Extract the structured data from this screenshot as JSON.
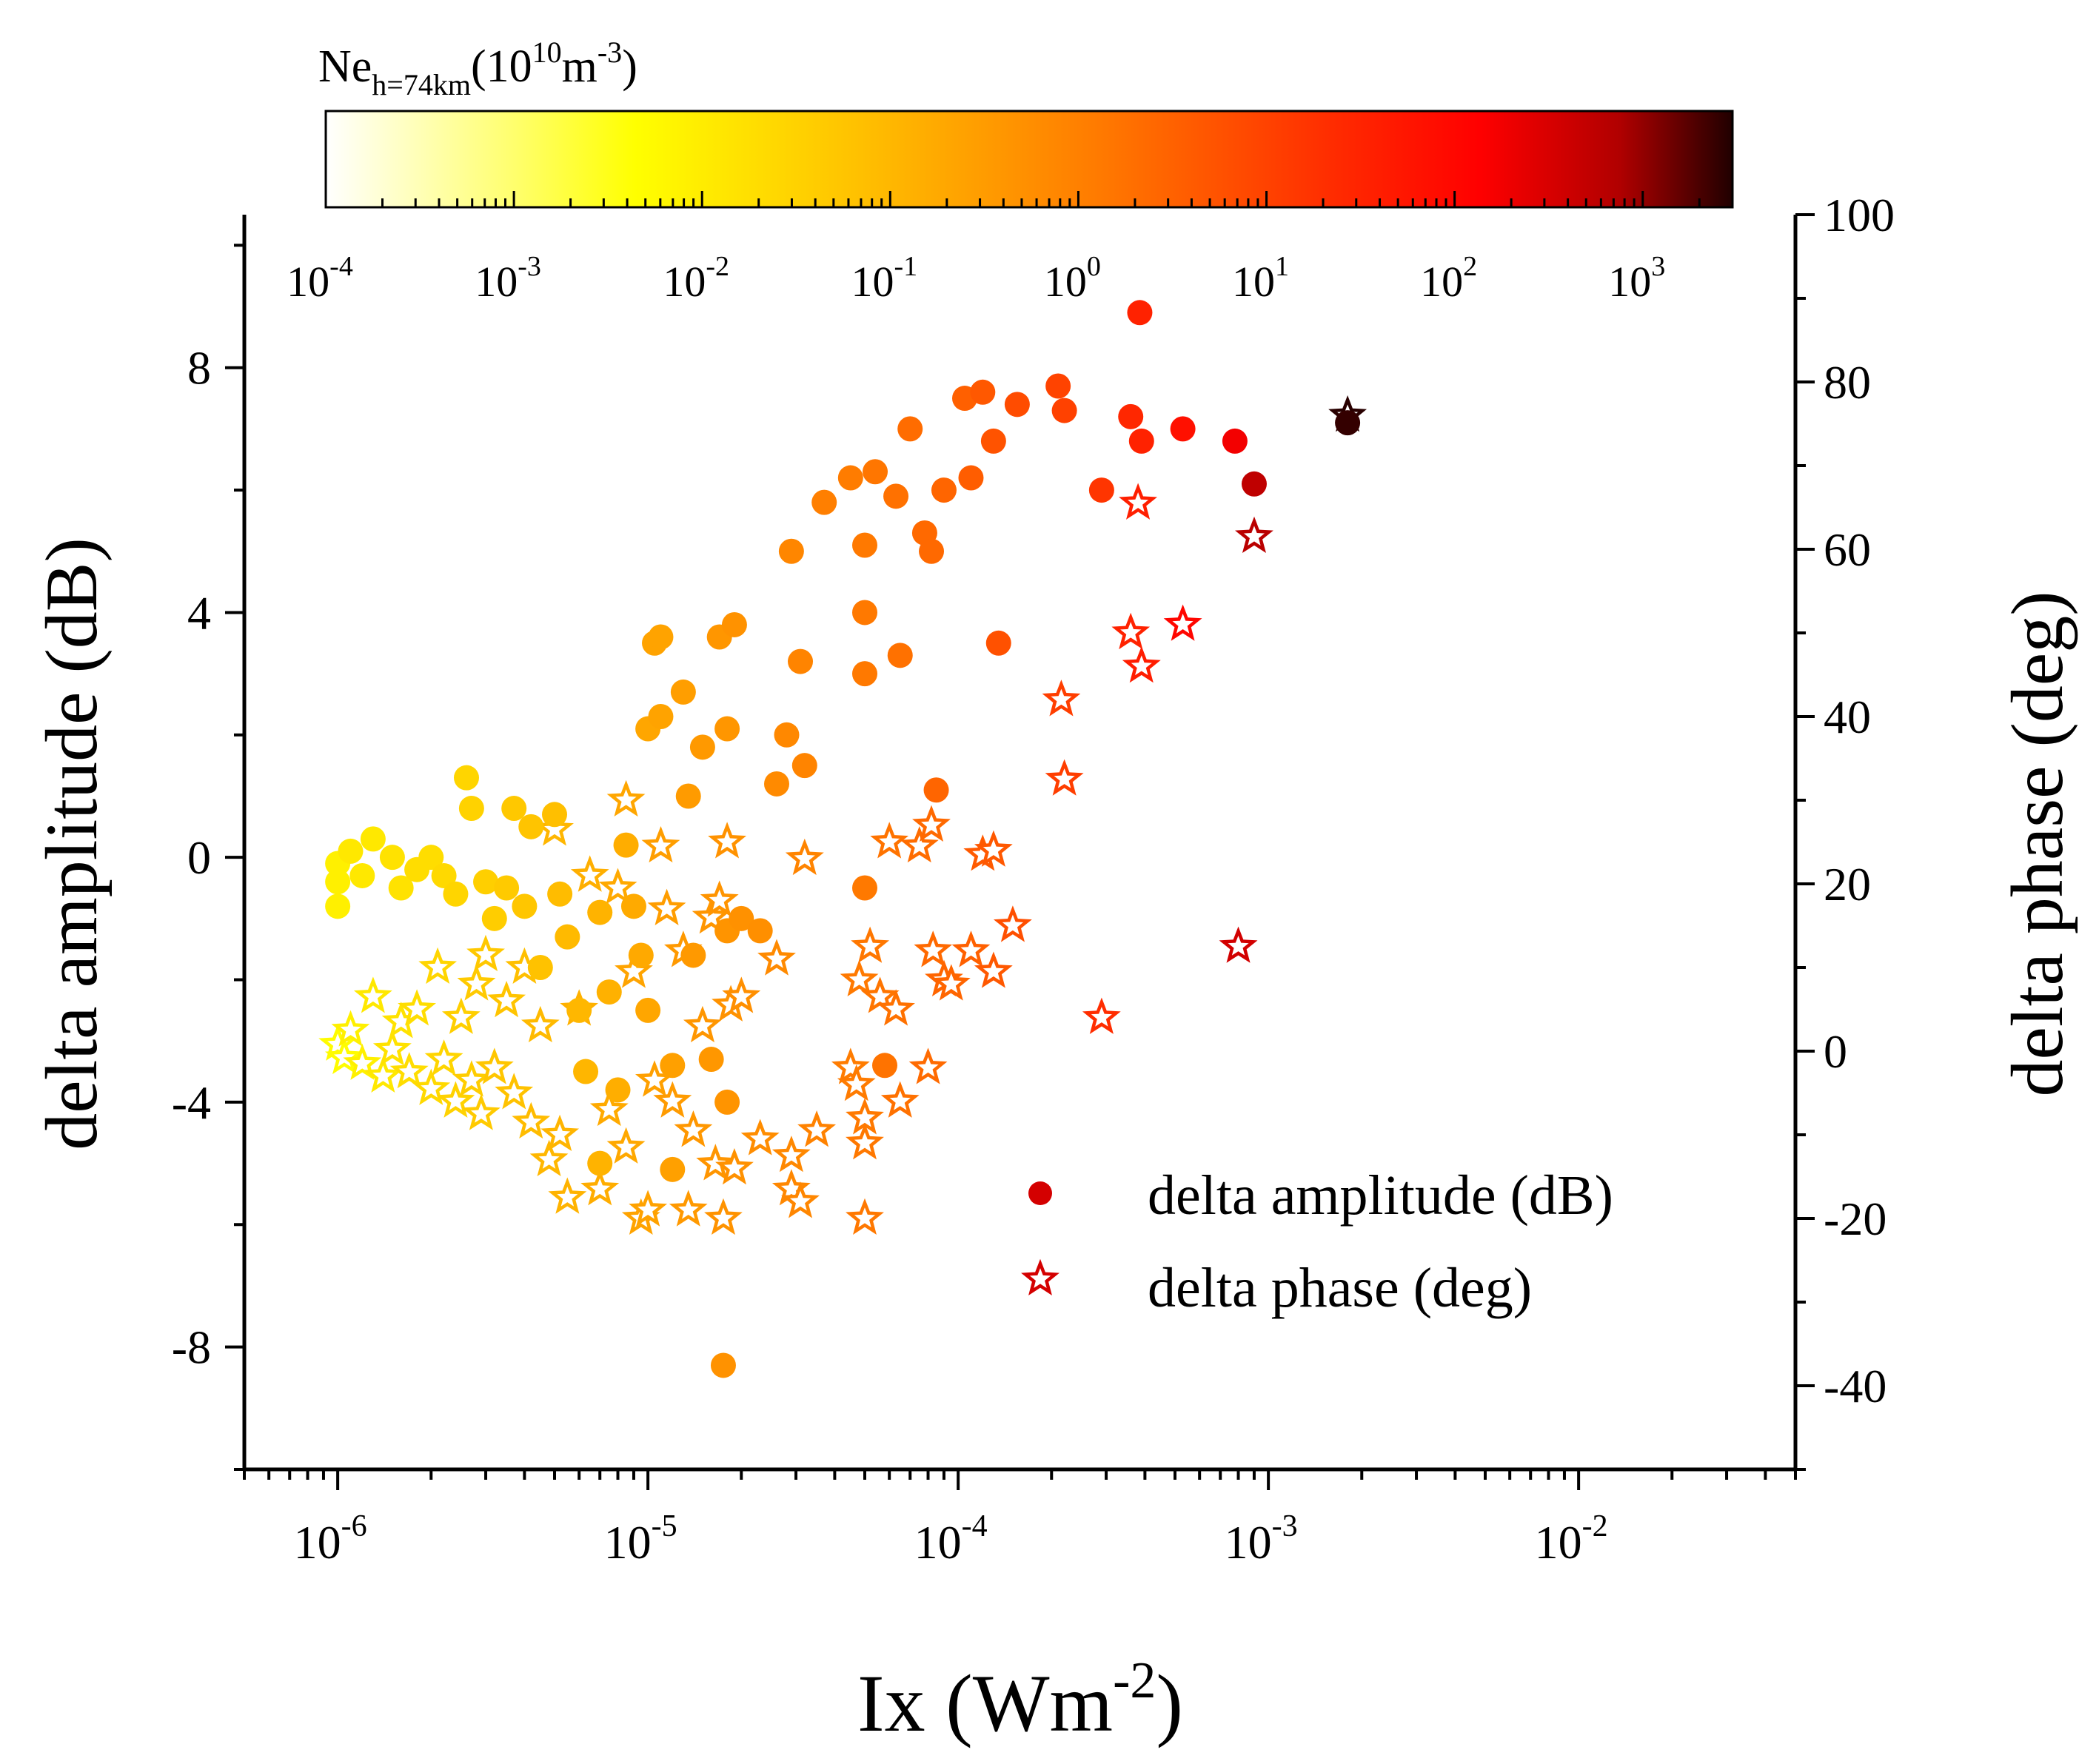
{
  "chart_data": {
    "type": "scatter",
    "xlabel": "Ix (Wm",
    "xlabel_sup": "-2",
    "xlabel_close": ")",
    "ylabel_left": "delta amplitude (dB)",
    "ylabel_right": "delta phase (deg)",
    "x_scale": "log",
    "xlim": [
      5e-07,
      0.05
    ],
    "ylim_left": [
      -10,
      10.5
    ],
    "ylim_right": [
      -50,
      100
    ],
    "x_ticks": [
      {
        "value": 1e-06,
        "base": "10",
        "exp": "-6"
      },
      {
        "value": 1e-05,
        "base": "10",
        "exp": "-5"
      },
      {
        "value": 0.0001,
        "base": "10",
        "exp": "-4"
      },
      {
        "value": 0.001,
        "base": "10",
        "exp": "-3"
      },
      {
        "value": 0.01,
        "base": "10",
        "exp": "-2"
      }
    ],
    "y_left_ticks": [
      {
        "value": 8,
        "label": "8"
      },
      {
        "value": 4,
        "label": "4"
      },
      {
        "value": 0,
        "label": "0"
      },
      {
        "value": -4,
        "label": "-4"
      },
      {
        "value": -8,
        "label": "-8"
      }
    ],
    "y_right_ticks": [
      {
        "value": 100,
        "label": "100"
      },
      {
        "value": 80,
        "label": "80"
      },
      {
        "value": 60,
        "label": "60"
      },
      {
        "value": 40,
        "label": "40"
      },
      {
        "value": 20,
        "label": "20"
      },
      {
        "value": 0,
        "label": "0"
      },
      {
        "value": -20,
        "label": "-20"
      },
      {
        "value": -40,
        "label": "-40"
      }
    ],
    "colorbar": {
      "title_main": "Ne",
      "title_sub": "h=74km",
      "title_open": "(10",
      "title_sup1": "10",
      "title_mid": "m",
      "title_sup2": "-3",
      "title_close": ")",
      "scale": "log",
      "range": [
        0.0001,
        3000
      ],
      "ticks": [
        {
          "value": 0.0001,
          "base": "10",
          "exp": "-4"
        },
        {
          "value": 0.001,
          "base": "10",
          "exp": "-3"
        },
        {
          "value": 0.01,
          "base": "10",
          "exp": "-2"
        },
        {
          "value": 0.1,
          "base": "10",
          "exp": "-1"
        },
        {
          "value": 1,
          "base": "10",
          "exp": "0"
        },
        {
          "value": 10,
          "base": "10",
          "exp": "1"
        },
        {
          "value": 100,
          "base": "10",
          "exp": "2"
        },
        {
          "value": 1000,
          "base": "10",
          "exp": "3"
        }
      ],
      "colors": [
        "#ffffff",
        "#ffff00",
        "#ffb000",
        "#ff6000",
        "#ff0000",
        "#b00000",
        "#200000"
      ]
    },
    "legend": [
      {
        "name": "delta amplitude (dB)",
        "marker": "circle",
        "color": "#d40000"
      },
      {
        "name": "delta phase (deg)",
        "marker": "star",
        "color": "#d40000"
      }
    ],
    "series": [
      {
        "name": "delta amplitude (dB)",
        "marker": "circle",
        "axis": "left",
        "points": [
          [
            1e-06,
            -0.1,
            0.003
          ],
          [
            1e-06,
            -0.4,
            0.003
          ],
          [
            1e-06,
            -0.8,
            0.003
          ],
          [
            1.1e-06,
            0.1,
            0.004
          ],
          [
            1.2e-06,
            -0.3,
            0.004
          ],
          [
            1.3e-06,
            0.3,
            0.004
          ],
          [
            1.5e-06,
            0.0,
            0.005
          ],
          [
            1.6e-06,
            -0.5,
            0.005
          ],
          [
            1.8e-06,
            -0.2,
            0.006
          ],
          [
            2e-06,
            0.0,
            0.006
          ],
          [
            2.2e-06,
            -0.3,
            0.007
          ],
          [
            2.4e-06,
            -0.6,
            0.008
          ],
          [
            2.6e-06,
            1.3,
            0.008
          ],
          [
            2.7e-06,
            0.8,
            0.009
          ],
          [
            3e-06,
            -0.4,
            0.01
          ],
          [
            3.2e-06,
            -1.0,
            0.011
          ],
          [
            3.5e-06,
            -0.5,
            0.012
          ],
          [
            3.7e-06,
            0.8,
            0.013
          ],
          [
            4e-06,
            -0.8,
            0.014
          ],
          [
            4.2e-06,
            0.5,
            0.015
          ],
          [
            4.5e-06,
            -1.8,
            0.016
          ],
          [
            5e-06,
            0.7,
            0.018
          ],
          [
            5.2e-06,
            -0.6,
            0.02
          ],
          [
            5.5e-06,
            -1.3,
            0.022
          ],
          [
            6e-06,
            -2.5,
            0.024
          ],
          [
            6.3e-06,
            -3.5,
            0.025
          ],
          [
            7e-06,
            -0.9,
            0.028
          ],
          [
            7e-06,
            -5.0,
            0.028
          ],
          [
            7.5e-06,
            -2.2,
            0.03
          ],
          [
            8e-06,
            -3.8,
            0.033
          ],
          [
            8.5e-06,
            0.2,
            0.035
          ],
          [
            9e-06,
            -0.8,
            0.038
          ],
          [
            9.5e-06,
            -1.6,
            0.04
          ],
          [
            1e-05,
            -2.5,
            0.045
          ],
          [
            1e-05,
            2.1,
            0.045
          ],
          [
            1.05e-05,
            3.5,
            0.05
          ],
          [
            1.1e-05,
            3.6,
            0.05
          ],
          [
            1.1e-05,
            2.3,
            0.05
          ],
          [
            1.2e-05,
            -3.4,
            0.055
          ],
          [
            1.2e-05,
            -5.1,
            0.055
          ],
          [
            1.3e-05,
            2.7,
            0.06
          ],
          [
            1.35e-05,
            1.0,
            0.065
          ],
          [
            1.4e-05,
            -1.6,
            0.07
          ],
          [
            1.5e-05,
            1.8,
            0.07
          ],
          [
            1.6e-05,
            -3.3,
            0.075
          ],
          [
            1.7e-05,
            3.6,
            0.08
          ],
          [
            1.8e-05,
            2.1,
            0.08
          ],
          [
            1.8e-05,
            -1.2,
            0.085
          ],
          [
            1.8e-05,
            -4.0,
            0.085
          ],
          [
            1.75e-05,
            -8.3,
            0.09
          ],
          [
            1.9e-05,
            3.8,
            0.09
          ],
          [
            2e-05,
            -1.0,
            0.095
          ],
          [
            2.3e-05,
            -1.2,
            0.1
          ],
          [
            2.6e-05,
            1.2,
            0.12
          ],
          [
            2.8e-05,
            2.0,
            0.13
          ],
          [
            2.9e-05,
            5.0,
            0.14
          ],
          [
            3.1e-05,
            3.2,
            0.15
          ],
          [
            3.2e-05,
            1.5,
            0.15
          ],
          [
            3.7e-05,
            5.8,
            0.18
          ],
          [
            4.5e-05,
            6.2,
            0.2
          ],
          [
            5e-05,
            5.1,
            0.22
          ],
          [
            5e-05,
            4.0,
            0.22
          ],
          [
            5e-05,
            3.0,
            0.22
          ],
          [
            5e-05,
            -0.5,
            0.22
          ],
          [
            5.4e-05,
            6.3,
            0.25
          ],
          [
            5.8e-05,
            -3.4,
            0.28
          ],
          [
            6.3e-05,
            5.9,
            0.3
          ],
          [
            6.5e-05,
            3.3,
            0.3
          ],
          [
            7e-05,
            7.0,
            0.35
          ],
          [
            7.8e-05,
            5.3,
            0.4
          ],
          [
            8.2e-05,
            5.0,
            0.4
          ],
          [
            8.5e-05,
            1.1,
            0.45
          ],
          [
            9e-05,
            6.0,
            0.45
          ],
          [
            0.000105,
            7.5,
            0.55
          ],
          [
            0.00011,
            6.2,
            0.6
          ],
          [
            0.00012,
            7.6,
            0.7
          ],
          [
            0.00013,
            6.8,
            0.8
          ],
          [
            0.000135,
            3.5,
            0.85
          ],
          [
            0.000155,
            7.4,
            1.0
          ],
          [
            0.00021,
            7.7,
            1.3
          ],
          [
            0.00022,
            7.3,
            1.4
          ],
          [
            0.00029,
            6.0,
            2.0
          ],
          [
            0.00036,
            7.2,
            3.0
          ],
          [
            0.000385,
            8.9,
            3.5
          ],
          [
            0.00039,
            6.8,
            3.5
          ],
          [
            0.00053,
            7.0,
            6.0
          ],
          [
            0.00078,
            6.8,
            15.0
          ],
          [
            0.0009,
            6.1,
            100.0
          ],
          [
            0.0018,
            7.1,
            2000.0
          ]
        ]
      },
      {
        "name": "delta phase (deg)",
        "marker": "star",
        "axis": "right",
        "points": [
          [
            1e-06,
            0.8,
            0.002
          ],
          [
            1.05e-06,
            -0.8,
            0.002
          ],
          [
            1.1e-06,
            2.5,
            0.003
          ],
          [
            1.2e-06,
            -1.5,
            0.003
          ],
          [
            1.3e-06,
            6.5,
            0.004
          ],
          [
            1.4e-06,
            -3.0,
            0.004
          ],
          [
            1.5e-06,
            0.2,
            0.005
          ],
          [
            1.6e-06,
            3.5,
            0.005
          ],
          [
            1.7e-06,
            -2.5,
            0.006
          ],
          [
            1.8e-06,
            5.0,
            0.006
          ],
          [
            2e-06,
            -4.5,
            0.007
          ],
          [
            2.1e-06,
            10.0,
            0.008
          ],
          [
            2.2e-06,
            -1.0,
            0.008
          ],
          [
            2.4e-06,
            -6.0,
            0.009
          ],
          [
            2.5e-06,
            4.0,
            0.01
          ],
          [
            2.7e-06,
            -3.5,
            0.011
          ],
          [
            2.8e-06,
            8.0,
            0.012
          ],
          [
            2.9e-06,
            -7.5,
            0.012
          ],
          [
            3e-06,
            11.5,
            0.013
          ],
          [
            3.2e-06,
            -2.0,
            0.014
          ],
          [
            3.5e-06,
            6.0,
            0.015
          ],
          [
            3.7e-06,
            -5.0,
            0.016
          ],
          [
            4e-06,
            10.0,
            0.018
          ],
          [
            4.2e-06,
            -8.5,
            0.02
          ],
          [
            4.5e-06,
            3.0,
            0.022
          ],
          [
            4.8e-06,
            -13.0,
            0.024
          ],
          [
            5e-06,
            26.5,
            0.025
          ],
          [
            5.2e-06,
            -10.0,
            0.026
          ],
          [
            5.5e-06,
            -17.5,
            0.028
          ],
          [
            6e-06,
            5.0,
            0.03
          ],
          [
            6.5e-06,
            21.0,
            0.032
          ],
          [
            7e-06,
            -16.5,
            0.035
          ],
          [
            7.5e-06,
            -7.0,
            0.038
          ],
          [
            8e-06,
            19.5,
            0.04
          ],
          [
            8.5e-06,
            -11.5,
            0.042
          ],
          [
            8.5e-06,
            30.0,
            0.045
          ],
          [
            9e-06,
            9.5,
            0.047
          ],
          [
            9.5e-06,
            -20.0,
            0.05
          ],
          [
            1e-05,
            -19.0,
            0.052
          ],
          [
            1.05e-05,
            -3.5,
            0.055
          ],
          [
            1.1e-05,
            24.5,
            0.06
          ],
          [
            1.15e-05,
            17.0,
            0.062
          ],
          [
            1.2e-05,
            -6.0,
            0.065
          ],
          [
            1.3e-05,
            12.0,
            0.07
          ],
          [
            1.35e-05,
            -19.0,
            0.072
          ],
          [
            1.4e-05,
            -9.5,
            0.075
          ],
          [
            1.5e-05,
            3.0,
            0.078
          ],
          [
            1.6e-05,
            16.0,
            0.08
          ],
          [
            1.65e-05,
            -13.5,
            0.082
          ],
          [
            1.7e-05,
            18.0,
            0.085
          ],
          [
            1.75e-05,
            -20.0,
            0.087
          ],
          [
            1.8e-05,
            25.0,
            0.09
          ],
          [
            1.85e-05,
            5.5,
            0.09
          ],
          [
            1.9e-05,
            -14.0,
            0.095
          ],
          [
            2e-05,
            6.5,
            0.1
          ],
          [
            2.3e-05,
            -10.5,
            0.11
          ],
          [
            2.6e-05,
            11.0,
            0.12
          ],
          [
            2.9e-05,
            -12.5,
            0.13
          ],
          [
            2.9e-05,
            -16.5,
            0.135
          ],
          [
            3.1e-05,
            -18.0,
            0.14
          ],
          [
            3.2e-05,
            23.0,
            0.15
          ],
          [
            3.5e-05,
            -9.5,
            0.16
          ],
          [
            4.5e-05,
            -2.0,
            0.2
          ],
          [
            4.7e-05,
            -4.0,
            0.21
          ],
          [
            4.8e-05,
            8.5,
            0.22
          ],
          [
            5e-05,
            -8.0,
            0.22
          ],
          [
            5e-05,
            -11.0,
            0.23
          ],
          [
            5e-05,
            -20.0,
            0.23
          ],
          [
            5.2e-05,
            12.5,
            0.24
          ],
          [
            5.6e-05,
            6.5,
            0.26
          ],
          [
            6e-05,
            25.0,
            0.28
          ],
          [
            6.3e-05,
            5.0,
            0.3
          ],
          [
            6.5e-05,
            -6.0,
            0.3
          ],
          [
            7.5e-05,
            24.5,
            0.35
          ],
          [
            8e-05,
            -2.0,
            0.38
          ],
          [
            8.2e-05,
            27.0,
            0.4
          ],
          [
            8.3e-05,
            12.0,
            0.4
          ],
          [
            9e-05,
            8.5,
            0.45
          ],
          [
            9.5e-05,
            8.0,
            0.45
          ],
          [
            0.00011,
            12.0,
            0.55
          ],
          [
            0.00012,
            23.5,
            0.65
          ],
          [
            0.00013,
            24.0,
            0.7
          ],
          [
            0.00013,
            9.5,
            0.7
          ],
          [
            0.00015,
            15.0,
            0.9
          ],
          [
            0.000215,
            42.0,
            1.5
          ],
          [
            0.00022,
            32.5,
            1.5
          ],
          [
            0.00029,
            4.0,
            2.5
          ],
          [
            0.00036,
            50.0,
            3.5
          ],
          [
            0.00038,
            65.5,
            3.8
          ],
          [
            0.00039,
            46.0,
            4.0
          ],
          [
            0.00053,
            51.0,
            8.0
          ],
          [
            0.0008,
            12.5,
            50.0
          ],
          [
            0.0009,
            61.5,
            120.0
          ],
          [
            0.0018,
            76.0,
            2500.0
          ]
        ]
      }
    ]
  }
}
